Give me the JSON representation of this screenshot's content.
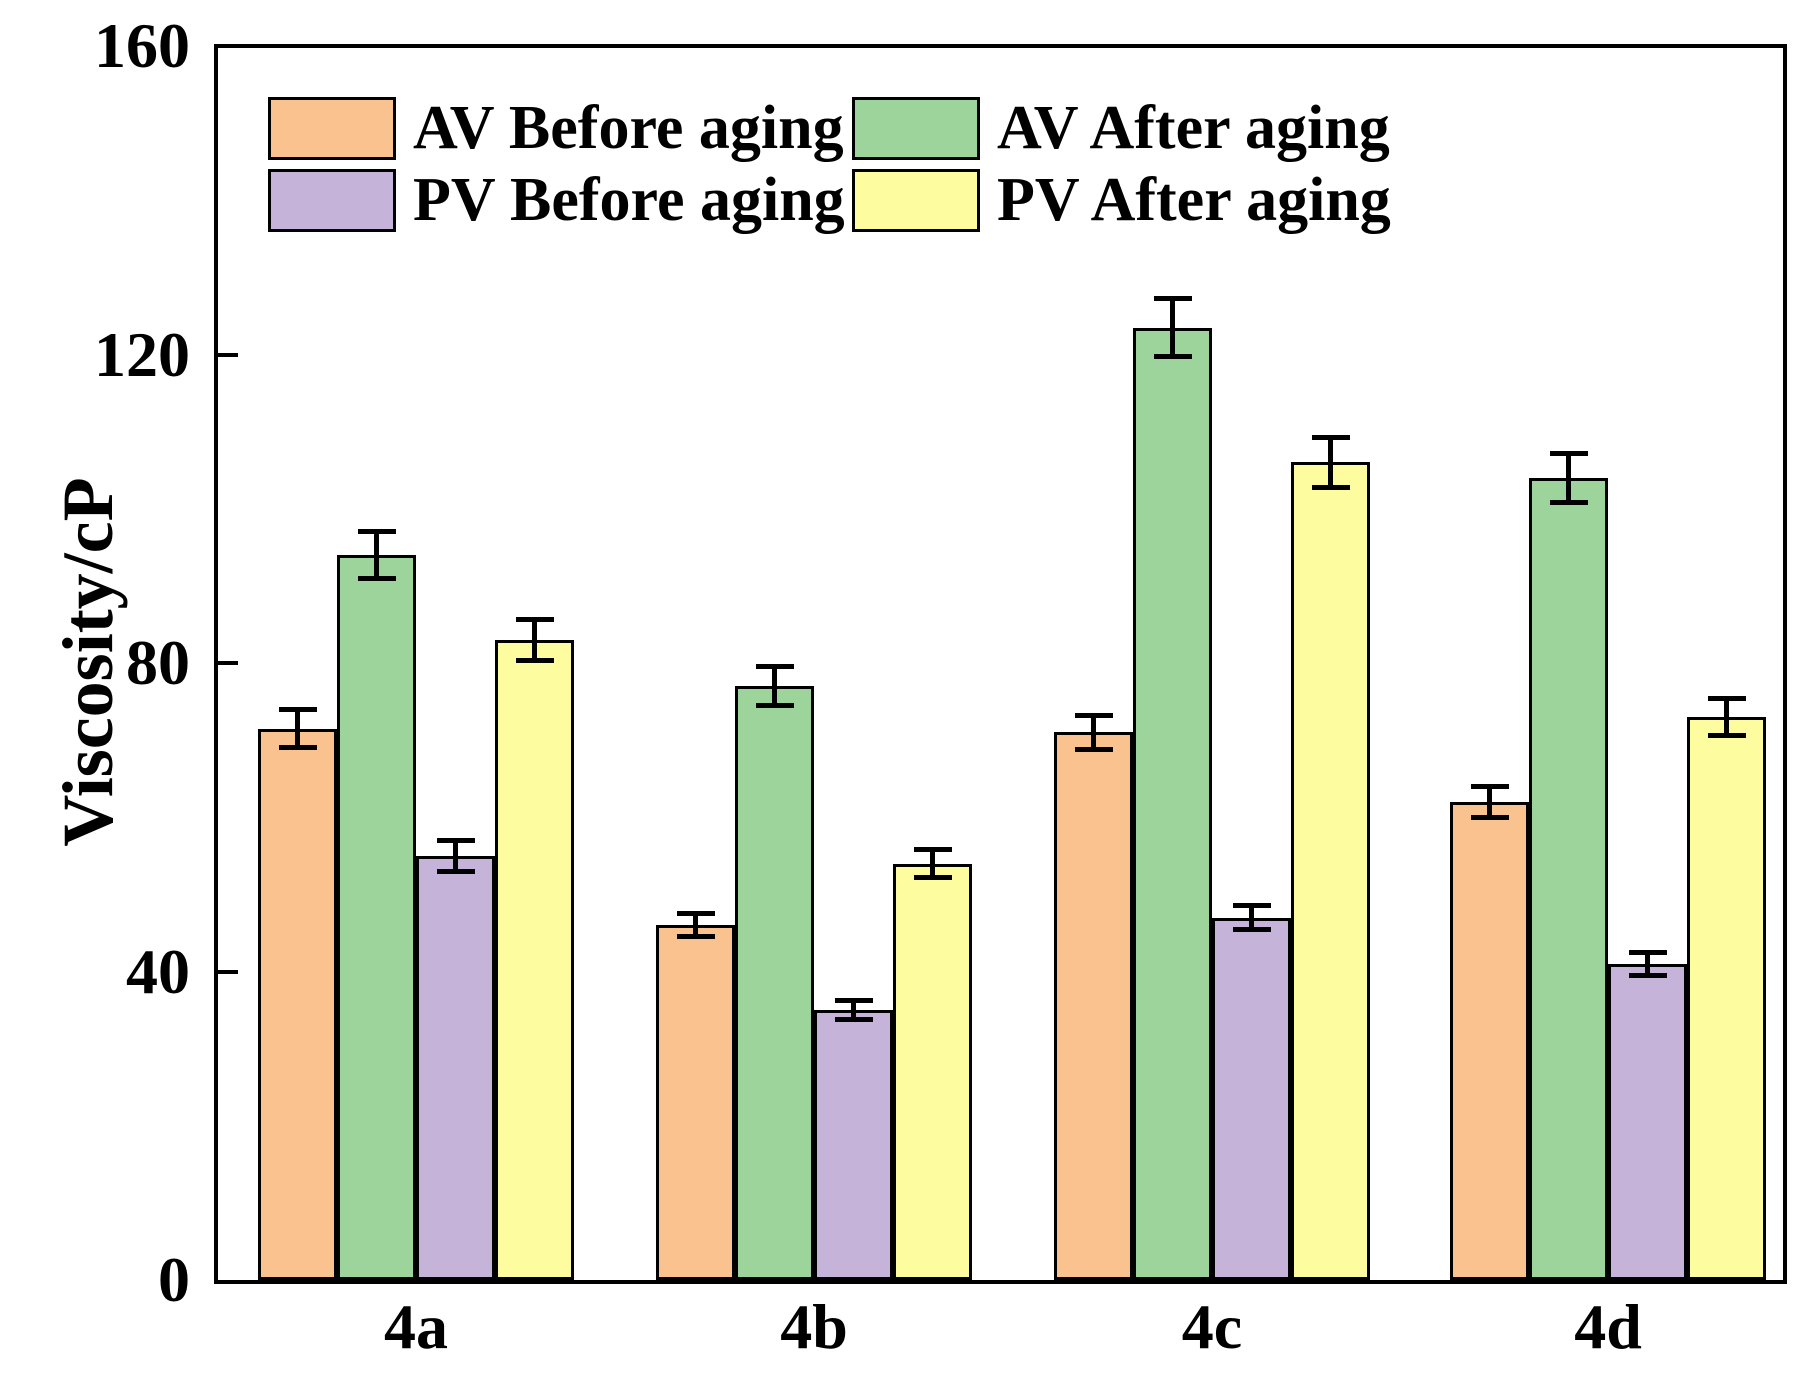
{
  "figure": {
    "background": "#ffffff",
    "axis_color": "#000000"
  },
  "chart_data": {
    "type": "bar",
    "title": "",
    "xlabel": "",
    "ylabel": "Viscosity/cP",
    "ylim": [
      0,
      160
    ],
    "yticks": [
      0,
      40,
      80,
      120,
      160
    ],
    "ytick_labels": [
      "0",
      "40",
      "80",
      "120",
      "160"
    ],
    "categories": [
      "4a",
      "4b",
      "4c",
      "4d"
    ],
    "grid": false,
    "legend_position": "top-left-inside",
    "legend_columns": 2,
    "error_bars": true,
    "bar_edge_color": "#000000",
    "error_bar_color": "#000000",
    "series": [
      {
        "name": "AV Before aging",
        "color": "#FAC28F",
        "values": [
          71.5,
          46,
          71,
          62
        ],
        "errors": [
          2.5,
          1.5,
          2.2,
          2.0
        ]
      },
      {
        "name": "AV After aging",
        "color": "#9CD49B",
        "values": [
          94,
          77,
          123.5,
          104
        ],
        "errors": [
          3.0,
          2.5,
          3.7,
          3.2
        ]
      },
      {
        "name": "PV Before aging",
        "color": "#C5B3DA",
        "values": [
          55,
          35,
          47,
          41
        ],
        "errors": [
          2.0,
          1.2,
          1.6,
          1.5
        ]
      },
      {
        "name": "PV After aging",
        "color": "#FDFD9F",
        "values": [
          83,
          54,
          106,
          73
        ],
        "errors": [
          2.7,
          1.8,
          3.3,
          2.4
        ]
      }
    ]
  },
  "legend": {
    "items": [
      {
        "label": "AV Before aging",
        "color": "#FAC28F"
      },
      {
        "label": "PV Before aging",
        "color": "#C5B3DA"
      },
      {
        "label": "AV After aging",
        "color": "#9CD49B"
      },
      {
        "label": "PV After aging",
        "color": "#FDFD9F"
      }
    ]
  }
}
